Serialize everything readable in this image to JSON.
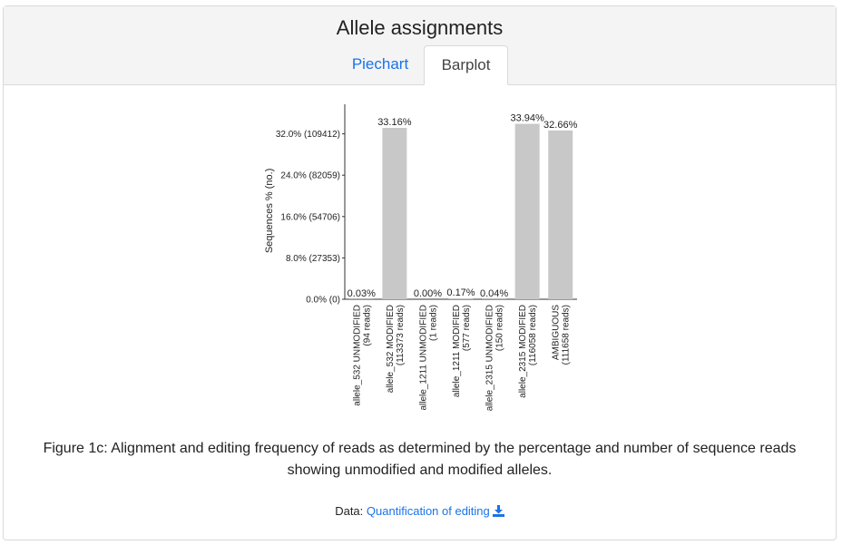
{
  "header": {
    "title": "Allele assignments",
    "tabs": [
      {
        "label": "Piechart",
        "active": false
      },
      {
        "label": "Barplot",
        "active": true
      }
    ]
  },
  "chart_data": {
    "type": "bar",
    "ylabel": "Sequences % (no.)",
    "ylim": [
      0,
      36
    ],
    "yticks": [
      {
        "value": 0,
        "label": "0.0% (0)"
      },
      {
        "value": 8,
        "label": "8.0% (27353)"
      },
      {
        "value": 16,
        "label": "16.0% (54706)"
      },
      {
        "value": 24,
        "label": "24.0% (82059)"
      },
      {
        "value": 32,
        "label": "32.0% (109412)"
      }
    ],
    "categories": [
      [
        "allele_532 UNMODIFIED",
        "(94 reads)"
      ],
      [
        "allele_532 MODIFIED",
        "(113373 reads)"
      ],
      [
        "allele_1211 UNMODIFIED",
        "(1 reads)"
      ],
      [
        "allele_1211 MODIFIED",
        "(577 reads)"
      ],
      [
        "allele_2315 UNMODIFIED",
        "(150 reads)"
      ],
      [
        "allele_2315 MODIFIED",
        "(116058 reads)"
      ],
      [
        "AMBIGUOUS",
        "(111658 reads)"
      ]
    ],
    "values": [
      0.03,
      33.16,
      0.0,
      0.17,
      0.04,
      33.94,
      32.66
    ],
    "value_labels": [
      "0.03%",
      "33.16%",
      "0.00%",
      "0.17%",
      "0.04%",
      "33.94%",
      "32.66%"
    ],
    "bar_color": "#c8c8c8",
    "grid": false
  },
  "caption": "Figure 1c: Alignment and editing frequency of reads as determined by the percentage and number of sequence reads showing unmodified and modified alleles.",
  "data_link": {
    "prefix": "Data:",
    "label": "Quantification of editing",
    "icon": "download-icon",
    "color": "#1a73e8"
  }
}
